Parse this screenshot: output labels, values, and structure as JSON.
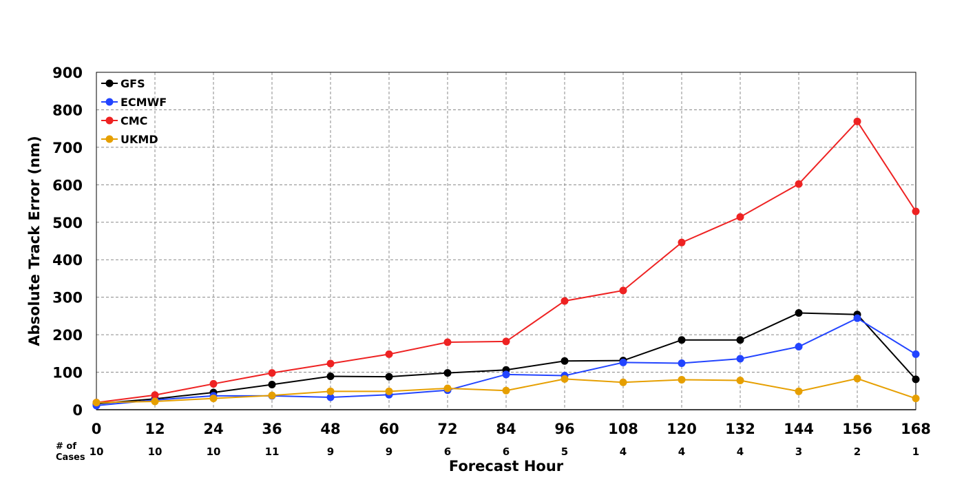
{
  "chart_data": {
    "type": "line",
    "xlabel": "Forecast Hour",
    "ylabel": "Absolute Track Error (nm)",
    "x": [
      0,
      12,
      24,
      36,
      48,
      60,
      72,
      84,
      96,
      108,
      120,
      132,
      144,
      156,
      168
    ],
    "xlim": [
      0,
      168
    ],
    "ylim": [
      0,
      900
    ],
    "yticks": [
      0,
      100,
      200,
      300,
      400,
      500,
      600,
      700,
      800,
      900
    ],
    "grid": true,
    "legend_position": "top-left",
    "cases_label_line1": "# of",
    "cases_label_line2": "Cases",
    "cases": [
      "10",
      "10",
      "10",
      "11",
      "9",
      "9",
      "6",
      "6",
      "5",
      "4",
      "4",
      "4",
      "3",
      "2",
      "1"
    ],
    "series": [
      {
        "name": "GFS",
        "color": "#000000",
        "values": [
          16,
          29,
          46,
          67,
          89,
          88,
          98,
          106,
          130,
          131,
          186,
          186,
          258,
          254,
          81
        ]
      },
      {
        "name": "ECMWF",
        "color": "#2244ff",
        "values": [
          11,
          26,
          37,
          37,
          33,
          40,
          52,
          94,
          91,
          126,
          124,
          136,
          168,
          244,
          148
        ]
      },
      {
        "name": "CMC",
        "color": "#ee2222",
        "values": [
          19,
          39,
          69,
          98,
          123,
          148,
          180,
          182,
          290,
          318,
          446,
          514,
          602,
          769,
          529
        ]
      },
      {
        "name": "UKMD",
        "color": "#e69f00",
        "values": [
          19,
          22,
          30,
          38,
          49,
          49,
          57,
          51,
          82,
          73,
          80,
          78,
          49,
          83,
          30
        ]
      }
    ]
  }
}
